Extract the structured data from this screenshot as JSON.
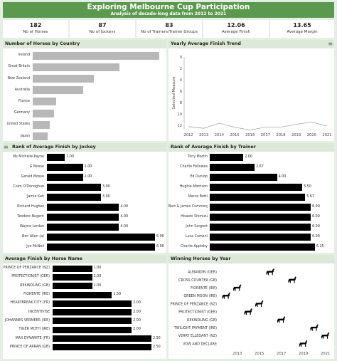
{
  "header": {
    "title": "Exploring Melbourne Cup Participation",
    "subtitle": "Analysis of decade-long data from 2012 to 2021"
  },
  "kpis": [
    {
      "value": "182",
      "label": "No of Horses"
    },
    {
      "value": "87",
      "label": "No of Jockeys"
    },
    {
      "value": "83",
      "label": "No of Trainers/Trainer Groups"
    },
    {
      "value": "12.06",
      "label": "Average Finish"
    },
    {
      "value": "13.65",
      "label": "Average Margin"
    }
  ],
  "panels": {
    "country": "Number of Horses by Country",
    "trend": "Yearly Average Finish Trend",
    "jockey": "Rank of Average Finish by Jockey",
    "trainer": "Rank of Average Finish by Trainer",
    "horse": "Average Finish by Horse Name",
    "winners": "Winning Horses by Year"
  },
  "menu_glyph": "≡",
  "colors": {
    "banner": "#5b9a4e",
    "gray_bar": "#b8b8b8",
    "black_bar": "#000000",
    "line": "#a5a5a5"
  },
  "chart_data": [
    {
      "type": "bar",
      "orientation": "horizontal",
      "title": "Number of Horses by Country",
      "categories": [
        "Ireland",
        "Great Britain",
        "New Zealand",
        "Australia",
        "France",
        "Germany",
        "United States",
        "Japan"
      ],
      "values": [
        60,
        41,
        29,
        24,
        11,
        10,
        8,
        7
      ],
      "xlim": [
        0,
        62
      ]
    },
    {
      "type": "line",
      "title": "Yearly Average Finish Trend",
      "ylabel": "Selected Measure",
      "x": [
        2012,
        2013,
        2014,
        2015,
        2016,
        2017,
        2018,
        2019,
        2020,
        2021
      ],
      "values": [
        12.2,
        12.5,
        11.6,
        12.3,
        12.8,
        12.3,
        12.3,
        11.8,
        11.4,
        12.1
      ],
      "ylim": [
        12.6,
        0
      ],
      "yticks": [
        0,
        2,
        4,
        6,
        8,
        10,
        12
      ],
      "reversed": true
    },
    {
      "type": "bar",
      "orientation": "horizontal",
      "title": "Rank of Average Finish by Jockey",
      "categories": [
        "Ms Michelle Payne",
        "G Mosse",
        "Gerald Mosse",
        "Colm O'Donoghue",
        "Jamie Kah",
        "Richard Hughes",
        "Teodore Nugent",
        "Wayne Lordan",
        "Ben Allen (a)",
        "Jye McNeil"
      ],
      "values": [
        1.0,
        2.0,
        2.0,
        3.0,
        3.0,
        4.0,
        4.0,
        4.0,
        6.0,
        6.0
      ],
      "labels": [
        "1.00",
        "2.00",
        "2.00",
        "3.00",
        "3.00",
        "4.00",
        "4.00",
        "4.00",
        "6.00",
        "6.00"
      ],
      "xlim": [
        0,
        6.0
      ]
    },
    {
      "type": "bar",
      "orientation": "horizontal",
      "title": "Rank of Average Finish by Trainer",
      "categories": [
        "Tony Martin",
        "Charlie Fellowes",
        "Ed Dunlop",
        "Hughie Morrison",
        "Marco Botti",
        "Bart & James Cummings",
        "Hisashi Shimizu",
        "John Sargent",
        "Luca Cumani",
        "Charlie Appleby"
      ],
      "values": [
        2.0,
        2.67,
        4.0,
        5.5,
        5.67,
        6.0,
        6.0,
        6.0,
        6.0,
        6.25
      ],
      "labels": [
        "2.00",
        "2.67",
        "4.00",
        "5.50",
        "5.67",
        "6.00",
        "6.00",
        "6.00",
        "6.00",
        "6.25"
      ],
      "xlim": [
        0,
        6.25
      ]
    },
    {
      "type": "bar",
      "orientation": "horizontal",
      "title": "Average Finish by Horse Name",
      "categories": [
        "PRINCE OF PENZANCE (NZ)",
        "PROTECTIONIST (GER)",
        "REKINDLING (GB)",
        "FIORENTE (IRE)",
        "HEARTBREAK CITY (FR)",
        "INCENTIVISE",
        "JOHANNES VERMEER (IRE)",
        "TIGER MOTH (IRE)",
        "MAX DYNAMITE (FR)",
        "PRINCE OF ARRAN (GB)"
      ],
      "values": [
        1.0,
        1.0,
        1.0,
        1.5,
        2.0,
        2.0,
        2.0,
        2.0,
        2.5,
        2.5
      ],
      "labels": [
        "1.00",
        "1.00",
        "1.00",
        "1.50",
        "2.00",
        "2.00",
        "2.00",
        "2.00",
        "2.50",
        "2.50"
      ],
      "xlim": [
        0,
        2.5
      ]
    },
    {
      "type": "scatter",
      "title": "Winning Horses by Year",
      "marker": "horse",
      "categories": [
        "ALMANDIN (GER)",
        "CROSS COUNTER (GB)",
        "FIORENTE (IRE)",
        "GREEN MOON (IRE)",
        "PRINCE OF PENZANCE (NZ)",
        "PROTECTIONIST (GER)",
        "REKINDLING (GB)",
        "TWILIGHT PAYMENT (IRE)",
        "VERRY ELLEGANT (NZ)",
        "VOW AND DECLARE"
      ],
      "years": [
        2016,
        2018,
        2013,
        2012,
        2015,
        2014,
        2017,
        2020,
        2021,
        2019
      ],
      "xticks": [
        2013,
        2015,
        2017,
        2019,
        2021
      ],
      "xlim": [
        2011.4,
        2021.6
      ]
    }
  ]
}
